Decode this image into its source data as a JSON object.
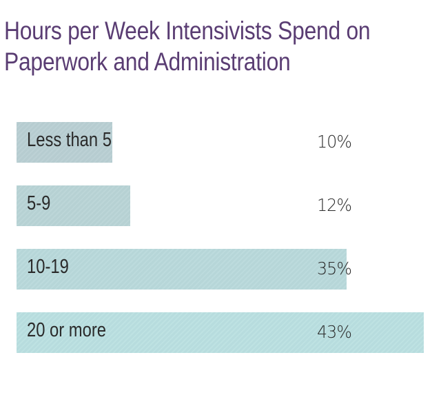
{
  "chart_data": {
    "type": "bar",
    "orientation": "horizontal",
    "title": "Hours per Week Intensivists Spend on Paperwork and Administration",
    "title_lines": [
      "Hours per Week Intensivists Spend on",
      "Paperwork and Administration"
    ],
    "categories": [
      "Less than 5",
      "5-9",
      "10-19",
      "20 or more"
    ],
    "values": [
      10,
      12,
      35,
      43
    ],
    "value_labels": [
      "10%",
      "12%",
      "35%",
      "43%"
    ],
    "unit": "%",
    "xlabel": "",
    "ylabel": "",
    "xlim": [
      0,
      43
    ],
    "grid": false,
    "legend": null,
    "colors": [
      "#b9cfd3",
      "#b9d4d6",
      "#b9d9db",
      "#bae0e1"
    ],
    "title_color": "#5a3d73"
  }
}
